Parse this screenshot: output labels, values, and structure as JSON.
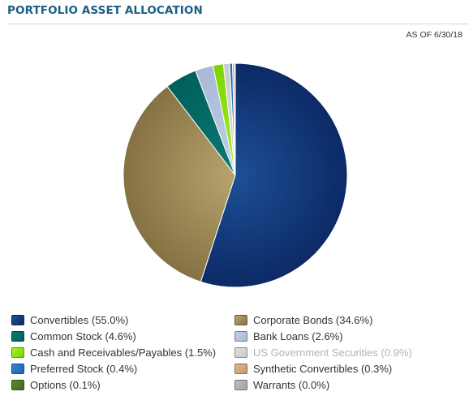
{
  "header": {
    "title": "PORTFOLIO ASSET ALLOCATION",
    "as_of": "AS OF 6/30/18"
  },
  "chart_data": {
    "type": "pie",
    "title": "PORTFOLIO ASSET ALLOCATION",
    "legend_position": "bottom",
    "slices": [
      {
        "label": "Convertibles (55.0%)",
        "name": "Convertibles",
        "value": 55.0,
        "color": "#0c2a66",
        "color_light": "#1e4f96"
      },
      {
        "label": "Corporate Bonds (34.6%)",
        "name": "Corporate Bonds",
        "value": 34.6,
        "color": "#857244",
        "color_light": "#b8a46c"
      },
      {
        "label": "Common Stock (4.6%)",
        "name": "Common Stock",
        "value": 4.6,
        "color": "#005f5a",
        "color_light": "#0b7a73"
      },
      {
        "label": "Bank Loans (2.6%)",
        "name": "Bank Loans",
        "value": 2.6,
        "color": "#a9b8d8",
        "color_light": "#c3cfe6"
      },
      {
        "label": "Cash and Receivables/Payables (1.5%)",
        "name": "Cash and Receivables/Payables",
        "value": 1.5,
        "color": "#7ad400",
        "color_light": "#a6f02a"
      },
      {
        "label": "US Government Securities (0.9%)",
        "name": "US Government Securities",
        "value": 0.9,
        "color": "#cccccc",
        "color_light": "#dddddd",
        "muted": true
      },
      {
        "label": "Preferred Stock (0.4%)",
        "name": "Preferred Stock",
        "value": 0.4,
        "color": "#1565b5",
        "color_light": "#3a86d0"
      },
      {
        "label": "Synthetic Convertibles (0.3%)",
        "name": "Synthetic Convertibles",
        "value": 0.3,
        "color": "#c79a6c",
        "color_light": "#ddb68e"
      },
      {
        "label": "Options (0.1%)",
        "name": "Options",
        "value": 0.1,
        "color": "#3f6b1e",
        "color_light": "#5a8a30"
      },
      {
        "label": "Warrants (0.0%)",
        "name": "Warrants",
        "value": 0.0,
        "color": "#a3a3a3",
        "color_light": "#bdbdbd"
      }
    ]
  }
}
